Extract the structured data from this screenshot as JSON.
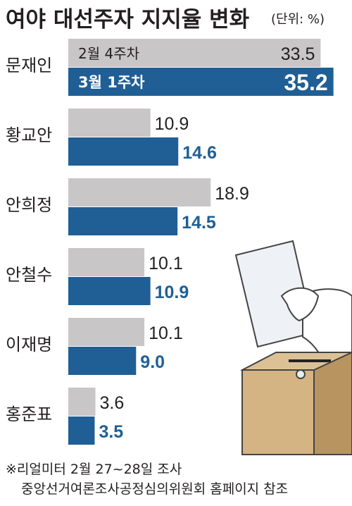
{
  "header": {
    "title": "여야 대선주자 지지율 변화",
    "unit": "(단위: %)"
  },
  "colors": {
    "prev": "#c8c6c6",
    "curr": "#1f5f95",
    "text": "#231f20",
    "accent_blue_text": "#1f5f95",
    "box": "#d4b483",
    "box_dark": "#b89560",
    "ballot": "#eef1f6"
  },
  "chart_data": {
    "type": "bar",
    "orientation": "horizontal",
    "title": "여야 대선주자 지지율 변화",
    "unit": "%",
    "categories": [
      "문재인",
      "황교안",
      "안희정",
      "안철수",
      "이재명",
      "홍준표"
    ],
    "series": [
      {
        "name": "2월 4주차",
        "values": [
          33.5,
          10.9,
          18.9,
          10.1,
          10.1,
          3.6
        ],
        "labels": [
          "33.5",
          "10.9",
          "18.9",
          "10.1",
          "10.1",
          "3.6"
        ]
      },
      {
        "name": "3월 1주차",
        "values": [
          35.2,
          14.6,
          14.5,
          10.9,
          9.0,
          3.5
        ],
        "labels": [
          "35.2",
          "14.6",
          "14.5",
          "10.9",
          "9.0",
          "3.5"
        ]
      }
    ],
    "legend": "inline-first-row",
    "grid": false
  },
  "footnote": {
    "line1": "※리얼미터 2월 27~28일 조사",
    "line2": "중앙선거여론조사공정심의위원회 홈페이지 참조"
  }
}
